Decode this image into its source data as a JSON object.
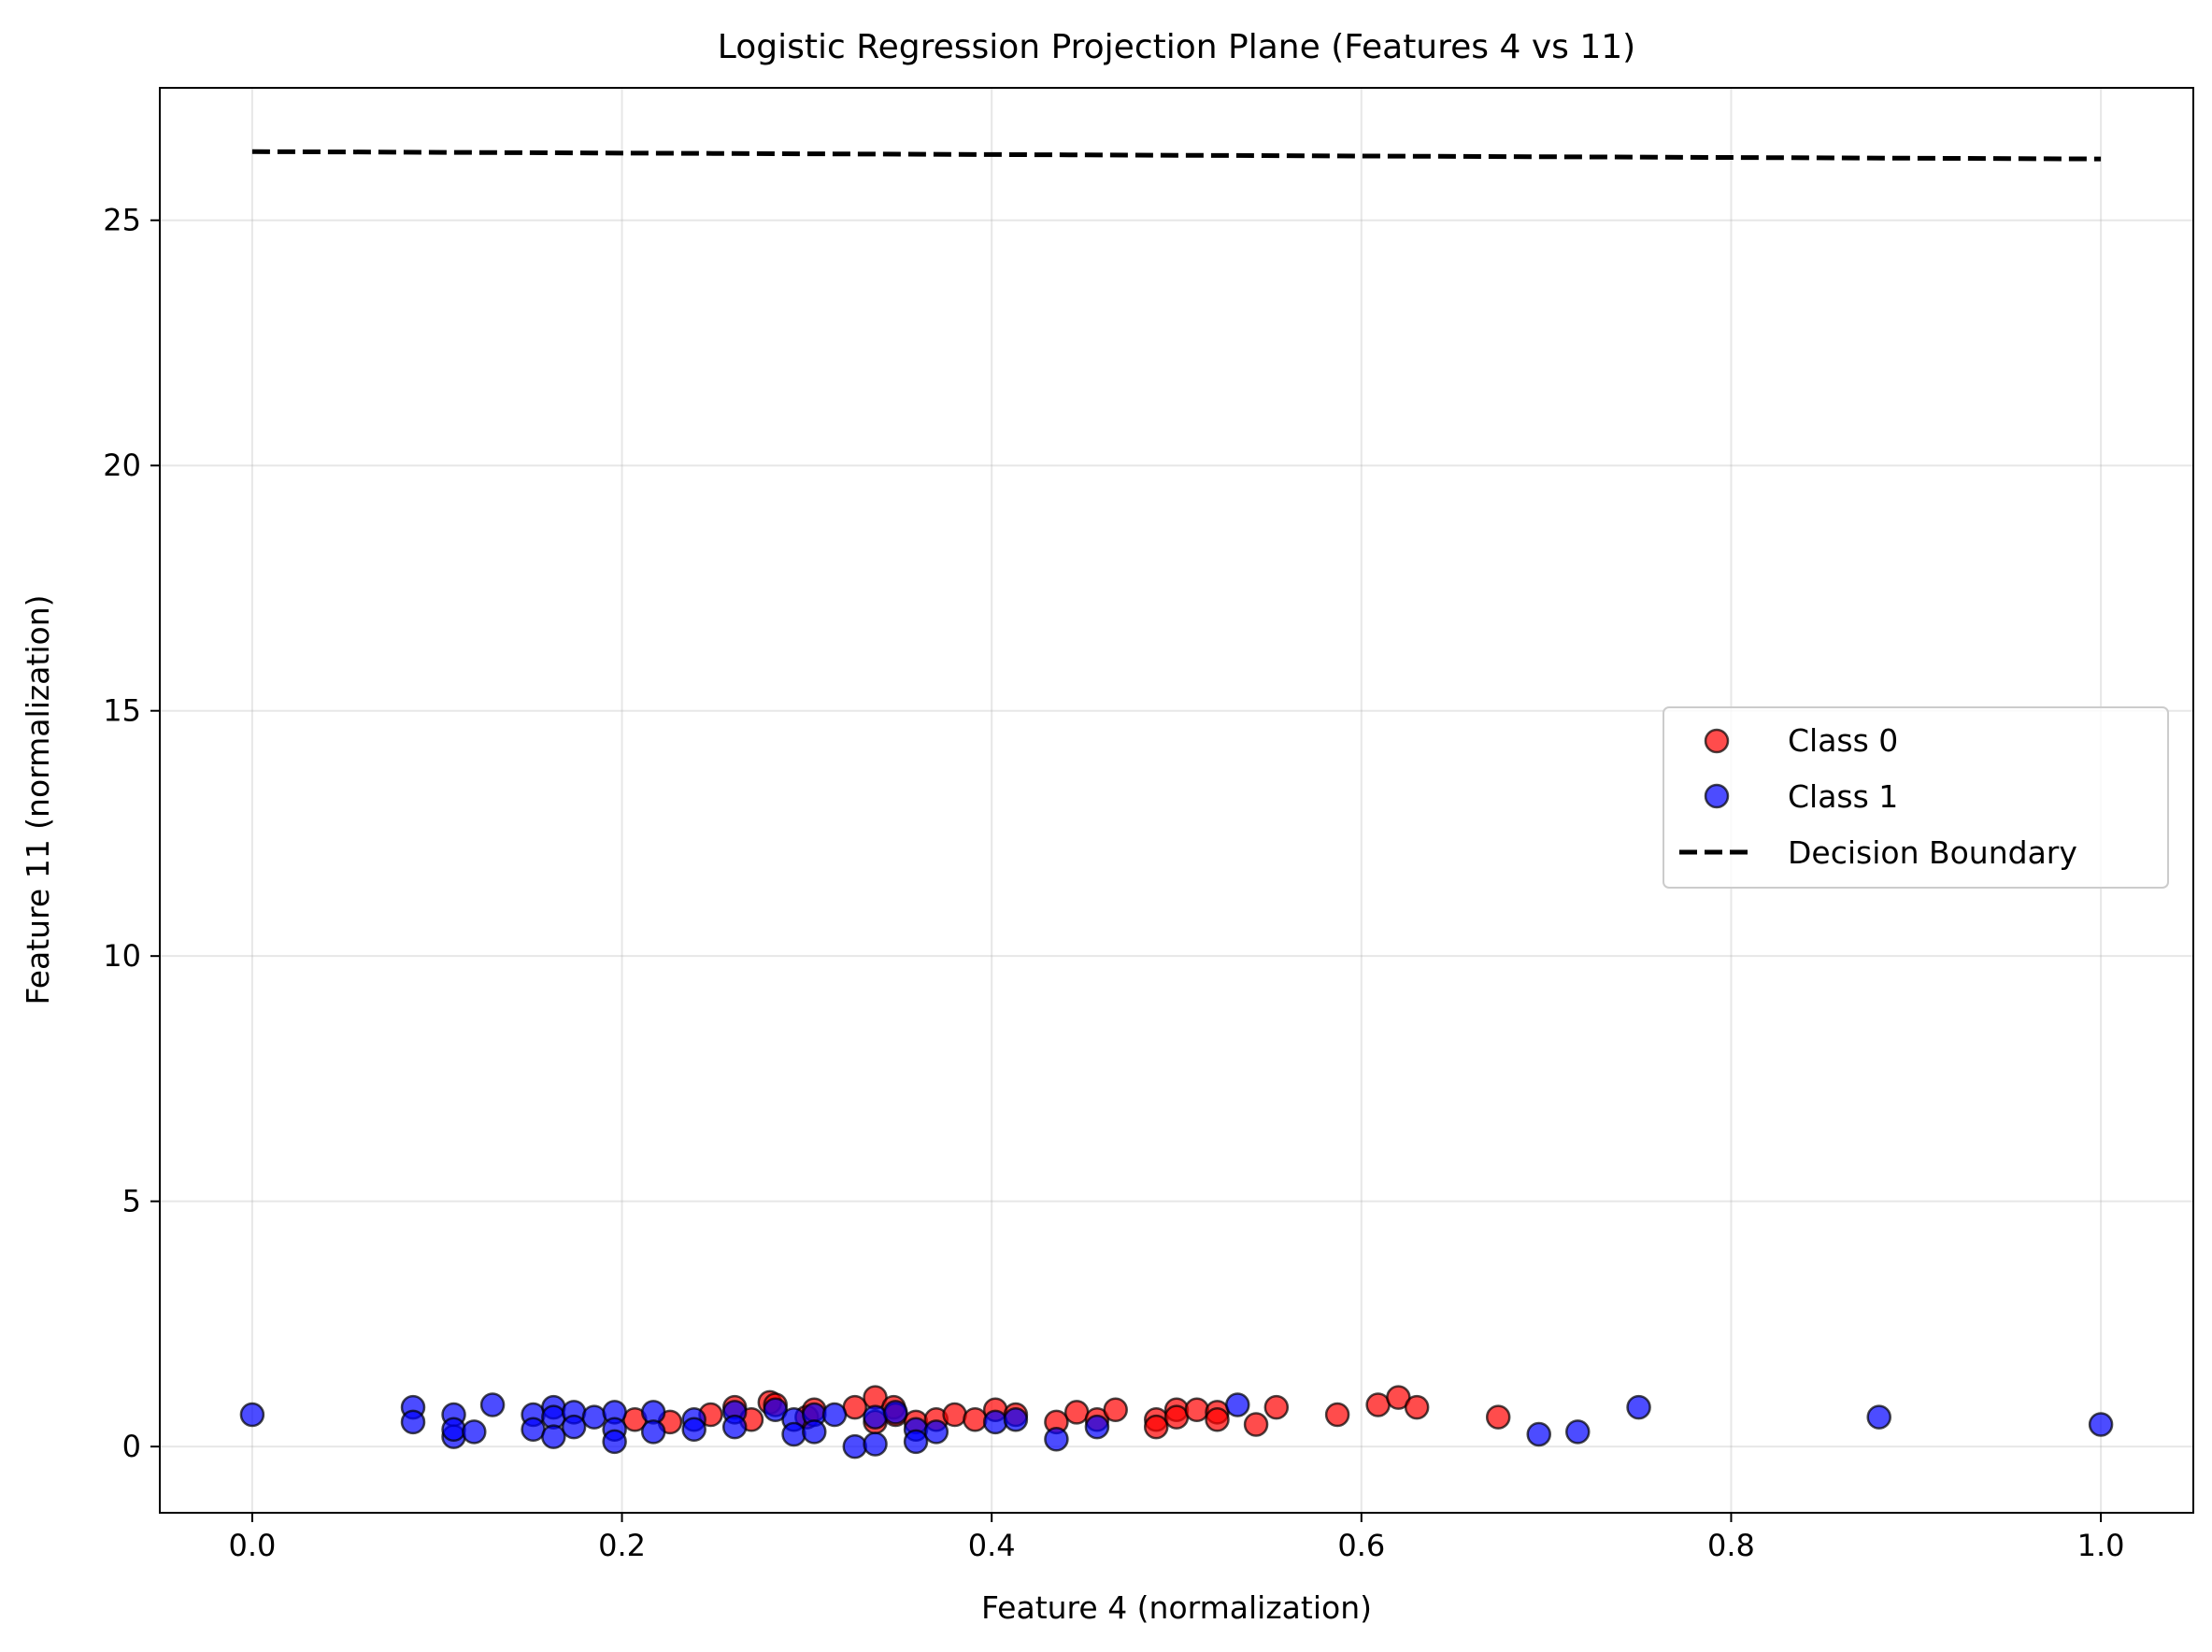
{
  "chart_data": {
    "type": "scatter",
    "title": "Logistic Regression Projection Plane (Features 4 vs 11)",
    "xlabel": "Feature 4 (normalization)",
    "ylabel": "Feature 11 (normalization)",
    "xlim": [
      -0.05,
      1.05
    ],
    "ylim": [
      -1.35,
      27.7
    ],
    "xticks": [
      0.0,
      0.2,
      0.4,
      0.6,
      0.8,
      1.0
    ],
    "xtick_labels": [
      "0.0",
      "0.2",
      "0.4",
      "0.6",
      "0.8",
      "1.0"
    ],
    "yticks": [
      0,
      5,
      10,
      15,
      20,
      25
    ],
    "ytick_labels": [
      "0",
      "5",
      "10",
      "15",
      "20",
      "25"
    ],
    "grid": true,
    "legend_position": "center-right",
    "series": [
      {
        "name": "Class 0",
        "color": "#ff0000",
        "alpha": 0.7,
        "marker": "circle",
        "points": [
          [
            0.207,
            0.55
          ],
          [
            0.226,
            0.5
          ],
          [
            0.248,
            0.65
          ],
          [
            0.261,
            0.8
          ],
          [
            0.27,
            0.55
          ],
          [
            0.28,
            0.9
          ],
          [
            0.283,
            0.85
          ],
          [
            0.3,
            0.6
          ],
          [
            0.304,
            0.75
          ],
          [
            0.326,
            0.8
          ],
          [
            0.337,
            1.0
          ],
          [
            0.337,
            0.5
          ],
          [
            0.347,
            0.8
          ],
          [
            0.348,
            0.65
          ],
          [
            0.359,
            0.5
          ],
          [
            0.37,
            0.55
          ],
          [
            0.38,
            0.65
          ],
          [
            0.391,
            0.55
          ],
          [
            0.402,
            0.75
          ],
          [
            0.413,
            0.65
          ],
          [
            0.435,
            0.5
          ],
          [
            0.446,
            0.7
          ],
          [
            0.457,
            0.55
          ],
          [
            0.467,
            0.75
          ],
          [
            0.489,
            0.55
          ],
          [
            0.489,
            0.4
          ],
          [
            0.5,
            0.75
          ],
          [
            0.5,
            0.6
          ],
          [
            0.511,
            0.75
          ],
          [
            0.522,
            0.7
          ],
          [
            0.522,
            0.55
          ],
          [
            0.543,
            0.45
          ],
          [
            0.554,
            0.8
          ],
          [
            0.587,
            0.65
          ],
          [
            0.609,
            0.85
          ],
          [
            0.62,
            1.0
          ],
          [
            0.63,
            0.8
          ],
          [
            0.674,
            0.6
          ]
        ]
      },
      {
        "name": "Class 1",
        "color": "#0000ff",
        "alpha": 0.7,
        "marker": "circle",
        "points": [
          [
            0.0,
            0.65
          ],
          [
            0.087,
            0.8
          ],
          [
            0.087,
            0.5
          ],
          [
            0.109,
            0.65
          ],
          [
            0.109,
            0.2
          ],
          [
            0.109,
            0.35
          ],
          [
            0.12,
            0.3
          ],
          [
            0.13,
            0.85
          ],
          [
            0.152,
            0.65
          ],
          [
            0.152,
            0.35
          ],
          [
            0.163,
            0.8
          ],
          [
            0.163,
            0.6
          ],
          [
            0.163,
            0.2
          ],
          [
            0.174,
            0.7
          ],
          [
            0.174,
            0.4
          ],
          [
            0.185,
            0.6
          ],
          [
            0.196,
            0.7
          ],
          [
            0.196,
            0.35
          ],
          [
            0.196,
            0.1
          ],
          [
            0.217,
            0.7
          ],
          [
            0.217,
            0.3
          ],
          [
            0.239,
            0.55
          ],
          [
            0.239,
            0.35
          ],
          [
            0.261,
            0.7
          ],
          [
            0.261,
            0.4
          ],
          [
            0.283,
            0.75
          ],
          [
            0.293,
            0.55
          ],
          [
            0.293,
            0.25
          ],
          [
            0.304,
            0.65
          ],
          [
            0.304,
            0.3
          ],
          [
            0.315,
            0.65
          ],
          [
            0.326,
            0.0
          ],
          [
            0.337,
            0.6
          ],
          [
            0.337,
            0.05
          ],
          [
            0.348,
            0.7
          ],
          [
            0.359,
            0.35
          ],
          [
            0.359,
            0.1
          ],
          [
            0.37,
            0.3
          ],
          [
            0.402,
            0.5
          ],
          [
            0.413,
            0.55
          ],
          [
            0.435,
            0.15
          ],
          [
            0.457,
            0.4
          ],
          [
            0.533,
            0.85
          ],
          [
            0.696,
            0.25
          ],
          [
            0.717,
            0.3
          ],
          [
            0.75,
            0.8
          ],
          [
            0.88,
            0.6
          ],
          [
            1.0,
            0.45
          ]
        ]
      }
    ],
    "decision_boundary": {
      "name": "Decision Boundary",
      "color": "#000000",
      "style": "dashed",
      "x": [
        0.0,
        1.0
      ],
      "y": [
        26.4,
        26.25
      ]
    }
  }
}
